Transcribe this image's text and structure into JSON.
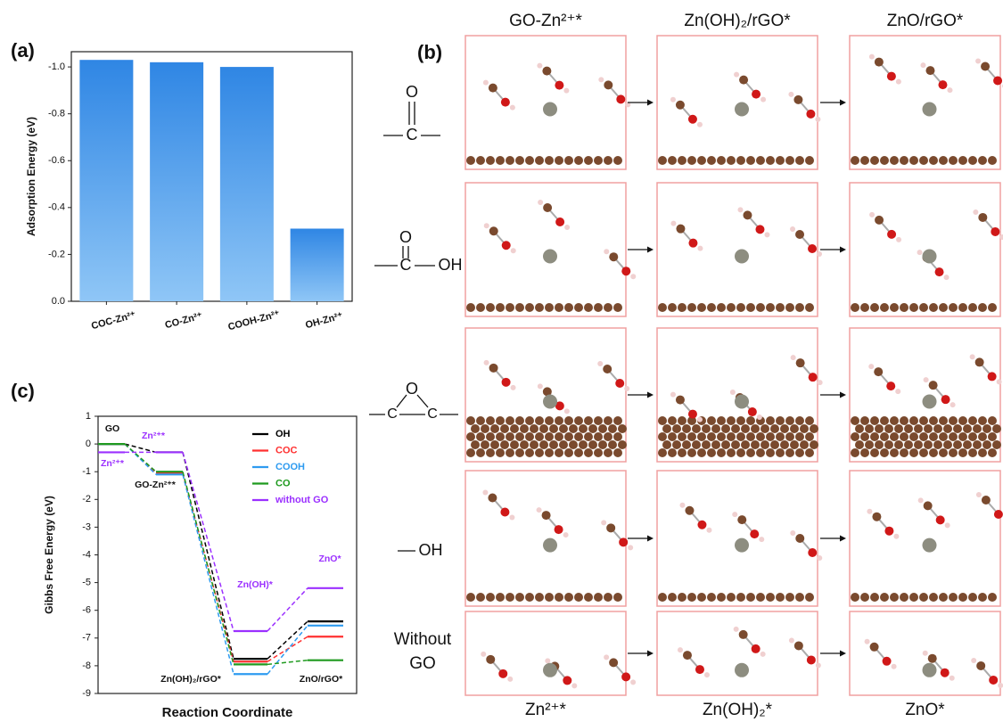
{
  "chart_data": [
    {
      "type": "bar",
      "panel_label": "(a)",
      "ylabel": "Adsorption Energy (eV)",
      "categories": [
        "COC-Zn²⁺",
        "CO-Zn²⁺",
        "COOH-Zn²⁺",
        "OH-Zn²⁺"
      ],
      "values": [
        -1.03,
        -1.02,
        -1.0,
        -0.31
      ],
      "color": "#3a8ee6",
      "ylim": [
        0,
        -1.065
      ],
      "yticks": [
        {
          "value": 0,
          "label": "0.0"
        },
        -0.2,
        -0.4,
        -0.6,
        -0.8,
        {
          "value": -1,
          "label": "-1.0"
        }
      ]
    },
    {
      "type": "energy",
      "panel_label": "(c)",
      "ylabel": "Gibbs Free Energy (eV)",
      "xlabel": "Reaction Coordinate",
      "categories": [
        null,
        null,
        null,
        null
      ],
      "ylim": [
        -9,
        1
      ],
      "yticks": [
        -9,
        -8,
        -7,
        -6,
        -5,
        -4,
        -3,
        -2,
        -1,
        0,
        1
      ],
      "legend": "upper right",
      "series": [
        {
          "name": "OH",
          "color": "#000000",
          "values": [
            0,
            -0.3,
            -7.75,
            -6.4
          ]
        },
        {
          "name": "COC",
          "color": "#ff3030",
          "values": [
            0,
            -1.05,
            -7.85,
            -6.95
          ]
        },
        {
          "name": "COOH",
          "color": "#2e9bf0",
          "values": [
            0,
            -1.1,
            -8.3,
            -6.55
          ]
        },
        {
          "name": "CO",
          "color": "#1f9a1f",
          "values": [
            0,
            -1.0,
            -7.95,
            -7.8
          ]
        },
        {
          "name": "without GO",
          "color": "#9b30ff",
          "values": [
            -0.3,
            -0.3,
            -6.75,
            -5.2
          ]
        }
      ],
      "annotations": [
        "GO",
        "Zn²⁺*",
        "Zn²⁺*",
        "GO-Zn²⁺*",
        "Zn(OH)*",
        "ZnO*",
        "Zn(OH)₂/rGO*",
        "ZnO/rGO*"
      ]
    }
  ],
  "panel_b": {
    "panel_label": "(b)",
    "columns": [
      "GO-Zn²⁺*",
      "Zn(OH)₂/rGO*",
      "ZnO/rGO*"
    ],
    "footers": [
      "Zn²⁺*",
      "Zn(OH)₂*",
      "ZnO*"
    ],
    "rows": [
      {
        "formula": [
          "O",
          "C"
        ]
      },
      {
        "formula": [
          "O",
          "C",
          "OH"
        ]
      },
      {
        "formula": [
          "O",
          "C",
          "C"
        ]
      },
      {
        "formula": [
          "OH"
        ]
      },
      {
        "label": [
          "Without",
          "GO"
        ]
      }
    ]
  }
}
